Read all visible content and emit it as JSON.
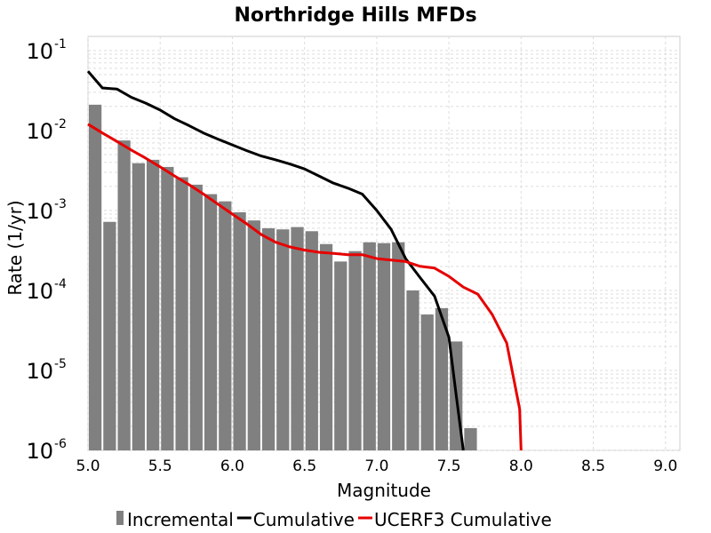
{
  "chart_data": {
    "type": "bar",
    "title": "Northridge Hills MFDs",
    "xlabel": "Magnitude",
    "ylabel": "Rate (1/yr)",
    "xlim": [
      5.0,
      9.1
    ],
    "ylim": [
      1e-06,
      0.15
    ],
    "yscale": "log",
    "grid": true,
    "legend_position": "bottom",
    "x_ticks": [
      "5.0",
      "5.5",
      "6.0",
      "6.5",
      "7.0",
      "7.5",
      "8.0",
      "8.5",
      "9.0"
    ],
    "y_ticks": [
      {
        "base": "10",
        "exp": "-6"
      },
      {
        "base": "10",
        "exp": "-5"
      },
      {
        "base": "10",
        "exp": "-4"
      },
      {
        "base": "10",
        "exp": "-3"
      },
      {
        "base": "10",
        "exp": "-2"
      },
      {
        "base": "10",
        "exp": "-1"
      }
    ],
    "bar_width": 0.1,
    "series": [
      {
        "name": "Incremental",
        "kind": "bar",
        "color": "#808080",
        "x": [
          5.05,
          5.15,
          5.25,
          5.35,
          5.45,
          5.55,
          5.65,
          5.75,
          5.85,
          5.95,
          6.05,
          6.15,
          6.25,
          6.35,
          6.45,
          6.55,
          6.65,
          6.75,
          6.85,
          6.95,
          7.05,
          7.15,
          7.25,
          7.35,
          7.45,
          7.55,
          7.65
        ],
        "values": [
          0.021,
          0.00072,
          0.0075,
          0.0039,
          0.0043,
          0.0035,
          0.0026,
          0.0021,
          0.0016,
          0.0013,
          0.00095,
          0.00075,
          0.0006,
          0.00058,
          0.00062,
          0.00055,
          0.00038,
          0.00023,
          0.00031,
          0.0004,
          0.00039,
          0.0004,
          0.0001,
          5e-05,
          6e-05,
          2.3e-05,
          1.9e-06
        ]
      },
      {
        "name": "Cumulative",
        "kind": "line",
        "color": "#000000",
        "x": [
          5.0,
          5.1,
          5.2,
          5.3,
          5.4,
          5.5,
          5.6,
          5.7,
          5.8,
          5.9,
          6.0,
          6.1,
          6.2,
          6.3,
          6.4,
          6.5,
          6.6,
          6.7,
          6.8,
          6.9,
          7.0,
          7.1,
          7.2,
          7.3,
          7.4,
          7.5,
          7.55,
          7.6
        ],
        "values": [
          0.055,
          0.034,
          0.033,
          0.026,
          0.022,
          0.018,
          0.014,
          0.0115,
          0.0093,
          0.0078,
          0.0066,
          0.0056,
          0.0048,
          0.0043,
          0.0038,
          0.0033,
          0.0027,
          0.0022,
          0.0019,
          0.0016,
          0.001,
          0.00058,
          0.00025,
          0.000145,
          8.5e-05,
          2.6e-05,
          5e-06,
          1e-06
        ]
      },
      {
        "name": "UCERF3 Cumulative",
        "kind": "line",
        "color": "#e60000",
        "x": [
          5.0,
          5.1,
          5.2,
          5.3,
          5.4,
          5.5,
          5.6,
          5.7,
          5.8,
          5.9,
          6.0,
          6.1,
          6.2,
          6.3,
          6.4,
          6.5,
          6.6,
          6.7,
          6.8,
          6.9,
          7.0,
          7.1,
          7.2,
          7.3,
          7.4,
          7.5,
          7.6,
          7.7,
          7.8,
          7.9,
          7.99,
          8.0
        ],
        "values": [
          0.012,
          0.0093,
          0.0073,
          0.0057,
          0.0045,
          0.0035,
          0.0027,
          0.0021,
          0.0016,
          0.0012,
          0.0009,
          0.00068,
          0.0005,
          0.0004,
          0.00035,
          0.00032,
          0.0003,
          0.00029,
          0.00028,
          0.00028,
          0.00025,
          0.00024,
          0.00023,
          0.0002,
          0.00019,
          0.00015,
          0.00011,
          9e-05,
          5e-05,
          2.2e-05,
          3.3e-06,
          1e-06
        ]
      }
    ]
  }
}
